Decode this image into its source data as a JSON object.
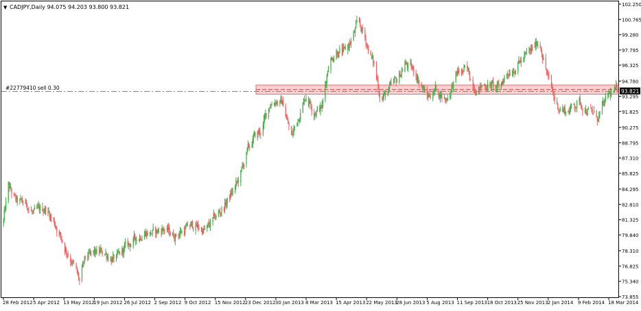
{
  "header": {
    "arrow_glyph": "▼",
    "symbol_text": "CADJPY,Daily  94.075 94.203 93.800 93.821"
  },
  "order": {
    "label": "#22779410 sell 0.30",
    "price": 93.77,
    "line_color": "#3cb043"
  },
  "current_price": {
    "label": "93.821",
    "value": 93.821
  },
  "colors": {
    "background": "#ffffff",
    "grid_border": "#000000",
    "bull": "#3cb043",
    "bear": "#f06262",
    "zone_fill": "#f9c8c8",
    "zone_border": "#e05858",
    "price_box": "#000000"
  },
  "chart_data": {
    "type": "candlestick",
    "title": "CADJPY,Daily",
    "ohlc_header": {
      "open": 94.075,
      "high": 94.203,
      "low": 93.8,
      "close": 93.821
    },
    "y_axis": {
      "min": 73.855,
      "max": 102.25,
      "ticks": [
        "102.250",
        "100.765",
        "99.280",
        "97.795",
        "96.325",
        "94.780",
        "93.295",
        "91.825",
        "90.275",
        "88.795",
        "87.310",
        "85.825",
        "84.295",
        "82.810",
        "81.325",
        "79.840",
        "78.310",
        "76.825",
        "75.340",
        "73.855"
      ]
    },
    "x_axis": {
      "labels": [
        "28 Feb 2012",
        "5 Apr 2012",
        "13 May 2012",
        "19 Jun 2012",
        "26 Jul 2012",
        "2 Sep 2012",
        "9 Oct 2012",
        "15 Nov 2012",
        "23 Dec 2012",
        "30 Jan 2013",
        "8 Mar 2013",
        "15 Apr 2013",
        "22 May 2013",
        "28 Jun 2013",
        "5 Aug 2013",
        "11 Sep 2013",
        "18 Oct 2013",
        "25 Nov 2013",
        "2 Jan 2014",
        "9 Feb 2014",
        "18 Mar 2014"
      ]
    },
    "resistance_zone": {
      "low": 93.5,
      "high": 94.4
    },
    "approx_close_path": [
      {
        "date": "28 Feb 2012",
        "close": 81.2
      },
      {
        "date": "5 Mar 2012",
        "close": 84.5
      },
      {
        "date": "15 Mar 2012",
        "close": 83.0
      },
      {
        "date": "28 Mar 2012",
        "close": 82.8
      },
      {
        "date": "5 Apr 2012",
        "close": 81.8
      },
      {
        "date": "20 Apr 2012",
        "close": 82.5
      },
      {
        "date": "5 May 2012",
        "close": 80.5
      },
      {
        "date": "13 May 2012",
        "close": 78.8
      },
      {
        "date": "22 May 2012",
        "close": 77.5
      },
      {
        "date": "1 Jun 2012",
        "close": 75.3
      },
      {
        "date": "8 Jun 2012",
        "close": 77.5
      },
      {
        "date": "19 Jun 2012",
        "close": 78.0
      },
      {
        "date": "1 Jul 2012",
        "close": 78.2
      },
      {
        "date": "15 Jul 2012",
        "close": 77.3
      },
      {
        "date": "26 Jul 2012",
        "close": 78.5
      },
      {
        "date": "5 Aug 2012",
        "close": 79.2
      },
      {
        "date": "20 Aug 2012",
        "close": 80.2
      },
      {
        "date": "2 Sep 2012",
        "close": 80.0
      },
      {
        "date": "12 Sep 2012",
        "close": 80.5
      },
      {
        "date": "25 Sep 2012",
        "close": 79.8
      },
      {
        "date": "9 Oct 2012",
        "close": 80.4
      },
      {
        "date": "20 Oct 2012",
        "close": 80.8
      },
      {
        "date": "3 Nov 2012",
        "close": 80.2
      },
      {
        "date": "15 Nov 2012",
        "close": 81.5
      },
      {
        "date": "25 Nov 2012",
        "close": 82.5
      },
      {
        "date": "5 Dec 2012",
        "close": 83.8
      },
      {
        "date": "15 Dec 2012",
        "close": 85.2
      },
      {
        "date": "23 Dec 2012",
        "close": 87.5
      },
      {
        "date": "2 Jan 2013",
        "close": 89.2
      },
      {
        "date": "12 Jan 2013",
        "close": 90.0
      },
      {
        "date": "22 Jan 2013",
        "close": 92.5
      },
      {
        "date": "30 Jan 2013",
        "close": 93.0
      },
      {
        "date": "8 Feb 2013",
        "close": 92.5
      },
      {
        "date": "18 Feb 2013",
        "close": 89.3
      },
      {
        "date": "25 Feb 2013",
        "close": 91.0
      },
      {
        "date": "8 Mar 2013",
        "close": 93.5
      },
      {
        "date": "18 Mar 2013",
        "close": 92.0
      },
      {
        "date": "28 Mar 2013",
        "close": 92.2
      },
      {
        "date": "5 Apr 2013",
        "close": 96.5
      },
      {
        "date": "15 Apr 2013",
        "close": 97.8
      },
      {
        "date": "25 Apr 2013",
        "close": 97.5
      },
      {
        "date": "5 May 2013",
        "close": 99.0
      },
      {
        "date": "12 May 2013",
        "close": 100.5
      },
      {
        "date": "22 May 2013",
        "close": 98.5
      },
      {
        "date": "1 Jun 2013",
        "close": 96.0
      },
      {
        "date": "8 Jun 2013",
        "close": 93.2
      },
      {
        "date": "15 Jun 2013",
        "close": 93.5
      },
      {
        "date": "28 Jun 2013",
        "close": 94.8
      },
      {
        "date": "8 Jul 2013",
        "close": 96.5
      },
      {
        "date": "22 Jul 2013",
        "close": 95.5
      },
      {
        "date": "5 Aug 2013",
        "close": 93.2
      },
      {
        "date": "15 Aug 2013",
        "close": 94.0
      },
      {
        "date": "28 Aug 2013",
        "close": 93.0
      },
      {
        "date": "11 Sep 2013",
        "close": 95.5
      },
      {
        "date": "22 Sep 2013",
        "close": 95.8
      },
      {
        "date": "5 Oct 2013",
        "close": 94.0
      },
      {
        "date": "18 Oct 2013",
        "close": 94.5
      },
      {
        "date": "1 Nov 2013",
        "close": 94.0
      },
      {
        "date": "10 Nov 2013",
        "close": 95.5
      },
      {
        "date": "25 Nov 2013",
        "close": 96.5
      },
      {
        "date": "10 Dec 2013",
        "close": 97.5
      },
      {
        "date": "22 Dec 2013",
        "close": 98.8
      },
      {
        "date": "2 Jan 2014",
        "close": 95.0
      },
      {
        "date": "12 Jan 2014",
        "close": 92.5
      },
      {
        "date": "25 Jan 2014",
        "close": 91.8
      },
      {
        "date": "9 Feb 2014",
        "close": 92.8
      },
      {
        "date": "20 Feb 2014",
        "close": 92.0
      },
      {
        "date": "5 Mar 2014",
        "close": 91.2
      },
      {
        "date": "18 Mar 2014",
        "close": 93.4
      },
      {
        "date": "28 Mar 2014",
        "close": 93.82
      }
    ]
  }
}
